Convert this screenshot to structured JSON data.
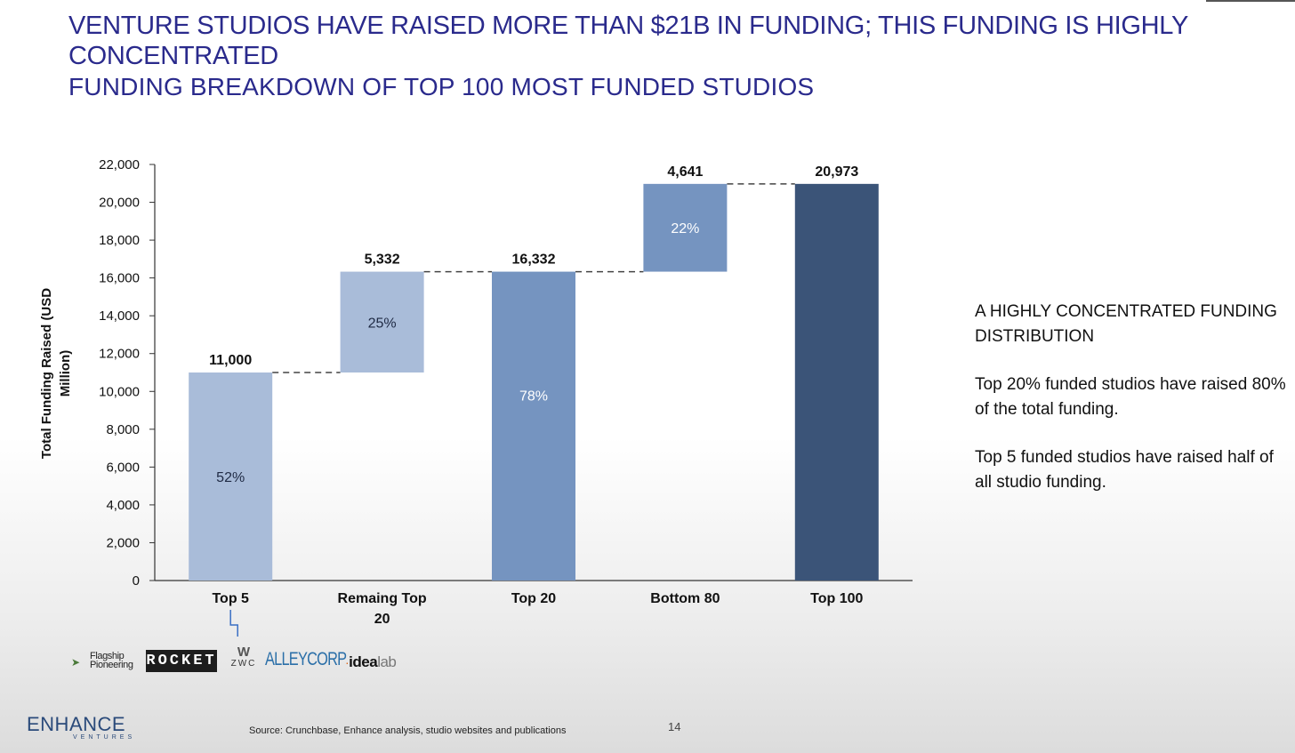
{
  "header": {
    "title": "VENTURE STUDIOS HAVE RAISED MORE THAN $21B IN FUNDING; THIS FUNDING IS HIGHLY CONCENTRATED",
    "subtitle": "FUNDING BREAKDOWN OF TOP 100 MOST FUNDED STUDIOS"
  },
  "chart_data": {
    "type": "bar",
    "subtype": "waterfall",
    "ylabel": "Total Funding Raised (USD Million)",
    "ylim": [
      0,
      22000
    ],
    "yticks": [
      0,
      2000,
      4000,
      6000,
      8000,
      10000,
      12000,
      14000,
      16000,
      18000,
      20000,
      22000
    ],
    "ytick_labels": [
      "0",
      "2,000",
      "4,000",
      "6,000",
      "8,000",
      "10,000",
      "12,000",
      "14,000",
      "16,000",
      "18,000",
      "20,000",
      "22,000"
    ],
    "categories": [
      "Top 5",
      "Remaing Top 20",
      "Top 20",
      "Bottom 80",
      "Top 100"
    ],
    "bars": [
      {
        "category": "Top 5",
        "base": 0,
        "top": 11000,
        "value_label": "11,000",
        "pct_label": "52%",
        "color": "#a9bcd9",
        "pct_color": "#1f2a44"
      },
      {
        "category": "Remaing Top 20",
        "base": 11000,
        "top": 16332,
        "value_label": "5,332",
        "pct_label": "25%",
        "color": "#a9bcd9",
        "pct_color": "#1f2a44"
      },
      {
        "category": "Top 20",
        "base": 0,
        "top": 16332,
        "value_label": "16,332",
        "pct_label": "78%",
        "color": "#7594c0",
        "pct_color": "#ffffff"
      },
      {
        "category": "Bottom 80",
        "base": 16332,
        "top": 20973,
        "value_label": "4,641",
        "pct_label": "22%",
        "color": "#7594c0",
        "pct_color": "#ffffff"
      },
      {
        "category": "Top 100",
        "base": 0,
        "top": 20973,
        "value_label": "20,973",
        "pct_label": "",
        "color": "#3b5478",
        "pct_color": "#ffffff"
      }
    ],
    "connector_levels": [
      11000,
      16332,
      16332,
      20973
    ],
    "grid": false
  },
  "callout": {
    "heading": "A HIGHLY CONCENTRATED FUNDING DISTRIBUTION",
    "point1": "Top 20% funded studios have raised 80% of the total funding.",
    "point2": "Top 5 funded studios have raised half of all studio funding."
  },
  "logos": {
    "flagship_line1": "Flagship",
    "flagship_line2": "Pioneering",
    "rocket": "ROCKET",
    "zwc": "ZWC",
    "alleycorp": "ALLEYCORP",
    "idealab_idea": "idea",
    "idealab_lab": "lab"
  },
  "footer": {
    "brand": "ENHANCE",
    "brand_sub": "VENTURES",
    "source": "Source: Crunchbase, Enhance analysis, studio websites and publications",
    "page_number": "14"
  },
  "colors": {
    "title": "#2a2a8c",
    "connector": "#444444",
    "bracket": "#3a6fc4"
  }
}
